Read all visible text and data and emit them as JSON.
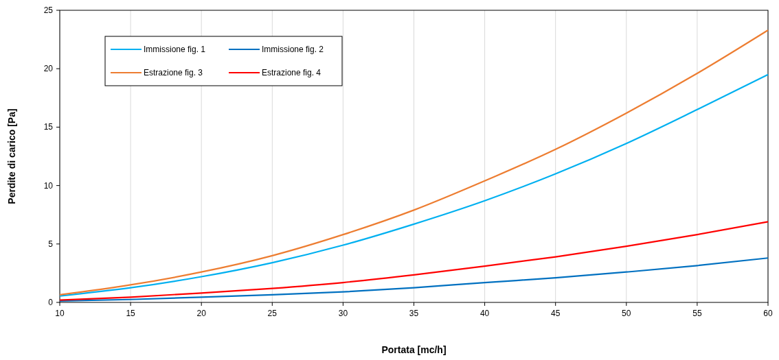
{
  "chart_data": {
    "type": "line",
    "xlabel": "Portata [mc/h]",
    "ylabel": "Perdite di carico [Pa]",
    "x": [
      10,
      15,
      20,
      25,
      30,
      35,
      40,
      45,
      50,
      55,
      60
    ],
    "xlim": [
      10,
      60
    ],
    "xticks": [
      10,
      15,
      20,
      25,
      30,
      35,
      40,
      45,
      50,
      55,
      60
    ],
    "ylim": [
      0,
      25
    ],
    "yticks": [
      0,
      5,
      10,
      15,
      20,
      25
    ],
    "grid": "x",
    "legend": "top left",
    "marker": "none",
    "line_style": "solid",
    "series": [
      {
        "name": "Immissione fig. 1",
        "color": "#00b0f0",
        "values": [
          0.55,
          1.25,
          2.2,
          3.4,
          4.9,
          6.7,
          8.7,
          11.0,
          13.6,
          16.5,
          19.5
        ]
      },
      {
        "name": "Immissione fig. 2",
        "color": "#0070c0",
        "values": [
          0.12,
          0.25,
          0.45,
          0.65,
          0.9,
          1.25,
          1.7,
          2.1,
          2.6,
          3.15,
          3.8
        ]
      },
      {
        "name": "Estrazione fig. 3",
        "color": "#ed7d31",
        "values": [
          0.65,
          1.5,
          2.6,
          4.0,
          5.8,
          7.9,
          10.4,
          13.1,
          16.2,
          19.6,
          23.3
        ]
      },
      {
        "name": "Estrazione fig. 4",
        "color": "#ff0000",
        "values": [
          0.2,
          0.45,
          0.8,
          1.2,
          1.7,
          2.35,
          3.1,
          3.9,
          4.8,
          5.8,
          6.9
        ]
      }
    ]
  }
}
